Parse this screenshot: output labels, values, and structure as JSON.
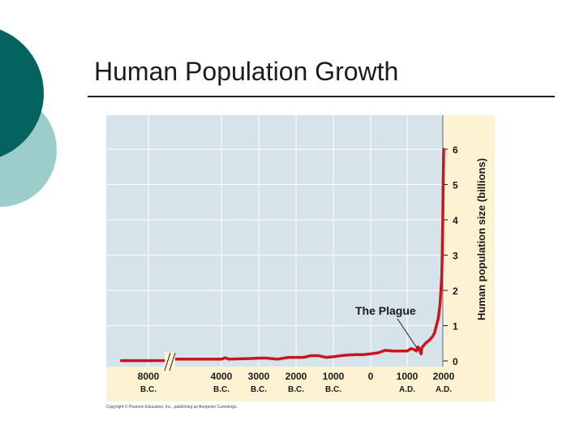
{
  "slide": {
    "title": "Human Population Growth"
  },
  "colors": {
    "theme_dark": "#05635f",
    "theme_light": "#9ccdca",
    "plot_bg": "#d7e3ea",
    "axis_bg": "#fdf3d3",
    "gridline": "#ffffff",
    "series": "#c8161d"
  },
  "chart_data": {
    "type": "line",
    "ylabel": "Human population size (billions)",
    "ylim": [
      0,
      6.5
    ],
    "yticks": [
      "0",
      "1",
      "2",
      "3",
      "4",
      "5",
      "6"
    ],
    "x_ticks": [
      {
        "year": -8000,
        "value": "8000",
        "era": "B.C."
      },
      {
        "year": -4000,
        "value": "4000",
        "era": "B.C."
      },
      {
        "year": -3000,
        "value": "3000",
        "era": "B.C."
      },
      {
        "year": -2000,
        "value": "2000",
        "era": "B.C."
      },
      {
        "year": -1000,
        "value": "1000",
        "era": "B.C."
      },
      {
        "year": 0,
        "value": "0",
        "era": ""
      },
      {
        "year": 1000,
        "value": "1000",
        "era": "A.D."
      },
      {
        "year": 2000,
        "value": "2000",
        "era": "A.D."
      }
    ],
    "series": [
      {
        "points": [
          [
            -8900,
            0.01
          ],
          [
            -8000,
            0.01
          ],
          [
            -7400,
            0.012
          ],
          [
            -7300,
            0.05
          ],
          [
            -5000,
            0.05
          ],
          [
            -4000,
            0.05
          ],
          [
            -3900,
            0.09
          ],
          [
            -3800,
            0.05
          ],
          [
            -3200,
            0.07
          ],
          [
            -3000,
            0.08
          ],
          [
            -2800,
            0.08
          ],
          [
            -2500,
            0.05
          ],
          [
            -2200,
            0.1
          ],
          [
            -1800,
            0.1
          ],
          [
            -1600,
            0.15
          ],
          [
            -1400,
            0.15
          ],
          [
            -1200,
            0.1
          ],
          [
            -1000,
            0.12
          ],
          [
            -800,
            0.15
          ],
          [
            -600,
            0.17
          ],
          [
            -400,
            0.18
          ],
          [
            -200,
            0.18
          ],
          [
            0,
            0.2
          ],
          [
            200,
            0.23
          ],
          [
            400,
            0.3
          ],
          [
            600,
            0.28
          ],
          [
            800,
            0.28
          ],
          [
            1000,
            0.28
          ],
          [
            1100,
            0.35
          ],
          [
            1200,
            0.32
          ],
          [
            1250,
            0.28
          ],
          [
            1300,
            0.4
          ],
          [
            1350,
            0.28
          ],
          [
            1380,
            0.2
          ],
          [
            1400,
            0.37
          ],
          [
            1500,
            0.5
          ],
          [
            1600,
            0.58
          ],
          [
            1700,
            0.7
          ],
          [
            1750,
            0.8
          ],
          [
            1800,
            1.0
          ],
          [
            1850,
            1.2
          ],
          [
            1900,
            1.6
          ],
          [
            1925,
            2.0
          ],
          [
            1950,
            2.5
          ],
          [
            1960,
            3.0
          ],
          [
            1975,
            4.0
          ],
          [
            1987,
            5.0
          ],
          [
            1999,
            6.0
          ]
        ]
      }
    ],
    "annotations": [
      {
        "text": "The Plague",
        "x": 1348,
        "y": 0.3
      }
    ]
  },
  "footer": {
    "copyright": "Copyright © Pearson Education, Inc., publishing as Benjamin Cummings."
  }
}
